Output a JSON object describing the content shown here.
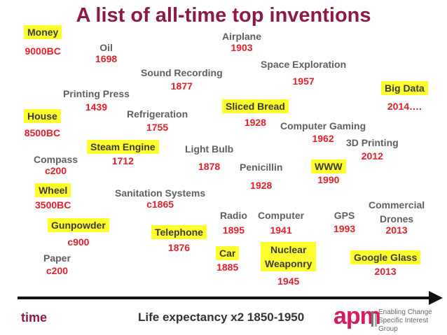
{
  "title": "A list of all-time top inventions",
  "footer": {
    "time_label": "time",
    "life_expectancy": "Life expectancy x2 1850-1950",
    "logo_name": "apm",
    "logo_line1": "Enabling Change",
    "logo_line2": "Specific Interest Group"
  },
  "colors": {
    "title": "#8b1a4a",
    "year": "#e0202a",
    "highlight": "#ffff2e",
    "logo": "#d61c5d"
  },
  "inventions": {
    "money": {
      "name": "Money",
      "year": "9000BC"
    },
    "oil": {
      "name": "Oil",
      "year": "1698"
    },
    "airplane": {
      "name": "Airplane",
      "year": "1903"
    },
    "sound_recording": {
      "name": "Sound Recording",
      "year": "1877"
    },
    "space_exploration": {
      "name": "Space Exploration",
      "year": "1957"
    },
    "printing_press": {
      "name": "Printing Press",
      "year": "1439"
    },
    "big_data": {
      "name": "Big Data",
      "year": "2014…."
    },
    "house": {
      "name": "House",
      "year": "8500BC"
    },
    "refrigeration": {
      "name": "Refrigeration",
      "year": "1755"
    },
    "sliced_bread": {
      "name": "Sliced Bread",
      "year": "1928"
    },
    "computer_gaming": {
      "name": "Computer Gaming",
      "year": "1962"
    },
    "printing_3d": {
      "name": "3D Printing",
      "year": "2012"
    },
    "steam_engine": {
      "name": "Steam Engine",
      "year": "1712"
    },
    "light_bulb": {
      "name": "Light Bulb",
      "year": "1878"
    },
    "compass": {
      "name": "Compass",
      "year": "c200"
    },
    "penicillin": {
      "name": "Penicillin",
      "year": "1928"
    },
    "www": {
      "name": "WWW",
      "year": "1990"
    },
    "wheel": {
      "name": "Wheel",
      "year": "3500BC"
    },
    "sanitation": {
      "name": "Sanitation Systems",
      "year": "c1865"
    },
    "radio": {
      "name": "Radio",
      "year": "1895"
    },
    "computer": {
      "name": "Computer",
      "year": "1941"
    },
    "gps": {
      "name": "GPS",
      "year": "1993"
    },
    "commercial_drones": {
      "name_line1": "Commercial",
      "name_line2": "Drones",
      "year": "2013"
    },
    "gunpowder": {
      "name": "Gunpowder",
      "year": "c900"
    },
    "telephone": {
      "name": "Telephone",
      "year": "1876"
    },
    "paper": {
      "name": "Paper",
      "year": "c200"
    },
    "car": {
      "name": "Car",
      "year": "1885"
    },
    "nuclear_weaponry": {
      "name_line1": "Nuclear",
      "name_line2": "Weaponry",
      "year": "1945"
    },
    "google_glass": {
      "name": "Google Glass",
      "year": "2013"
    }
  }
}
